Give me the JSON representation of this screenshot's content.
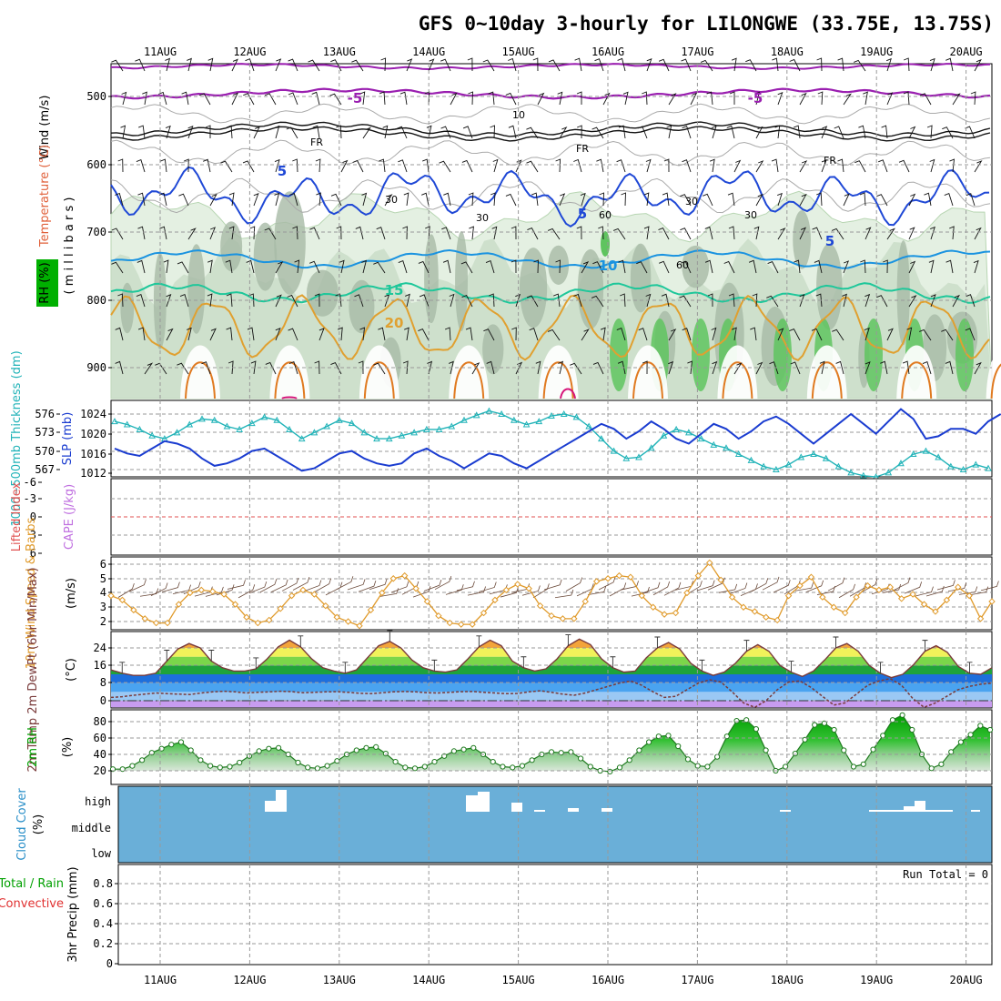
{
  "title": "GFS 0~10day 3-hourly for LILONGWE (33.75E, 13.75S)",
  "dates": [
    "11AUG",
    "12AUG",
    "13AUG",
    "14AUG",
    "15AUG",
    "16AUG",
    "17AUG",
    "18AUG",
    "19AUG",
    "20AUG"
  ],
  "panels": {
    "upper": {
      "ylabel_wind": "Wind (m/s)",
      "ylabel_temp": "Temperature (°C)",
      "ylabel_rh": "RH (%)",
      "ylabel_mb": "( m i l l i b a r s )",
      "pressure_ticks": [
        "500",
        "600",
        "700",
        "800",
        "900"
      ],
      "contour_labels": [
        "-5",
        "-5",
        "FR",
        "FR",
        "FR",
        "5",
        "5",
        "5",
        "10",
        "15",
        "20",
        "10",
        "30",
        "30",
        "30",
        "30",
        "60",
        "60"
      ]
    },
    "thickness": {
      "ylabel_left": "1000~500mb Thickness (dm)",
      "ylabel_right": "SLP (mb)",
      "left_ticks": [
        "576",
        "573",
        "570",
        "567"
      ],
      "right_ticks": [
        "1024",
        "1020",
        "1016",
        "1012"
      ]
    },
    "lifted": {
      "ylabel_left": "Lifted Index",
      "ylabel_right": "CAPE (J/kg)",
      "ticks": [
        "-6",
        "-3",
        "0",
        "3",
        "6"
      ]
    },
    "wind10": {
      "ylabel": "10m Wind Speed & Barbs",
      "unit": "(m/s)",
      "ticks": [
        "6",
        "5",
        "4",
        "3",
        "2"
      ]
    },
    "temp2m": {
      "ylabel": "2m Temp 2m DewPt (6hr Min/Max)",
      "unit": "(°C)",
      "ticks": [
        "24",
        "16",
        "8",
        "0"
      ]
    },
    "rh2m": {
      "ylabel": "2m RH",
      "unit": "(%)",
      "ticks": [
        "80",
        "60",
        "40",
        "20"
      ]
    },
    "cloud": {
      "ylabel": "Cloud Cover",
      "unit": "(%)",
      "levels": [
        "high",
        "middle",
        "low"
      ]
    },
    "precip": {
      "ylabel_total": "Total / Rain",
      "ylabel_conv": "Convective",
      "ylabel": "3hr Precip (mm)",
      "run_total": "Run Total = 0",
      "ticks": [
        "0.8",
        "0.6",
        "0.4",
        "0.2",
        "0"
      ]
    }
  },
  "chart_data": [
    {
      "type": "line",
      "panel": "thickness-slp",
      "x_unit": "day index from 11AUG (3-hourly)",
      "series": [
        {
          "name": "1000~500mb Thickness (dm)",
          "axis": "left",
          "color": "#21b3b8",
          "values": [
            574.8,
            574.3,
            573.5,
            572.5,
            572,
            573,
            574.3,
            575.2,
            575,
            574,
            573.5,
            574.5,
            575.5,
            575,
            573.5,
            572,
            573,
            574,
            575,
            574.5,
            573,
            572,
            572,
            572.5,
            573,
            573.5,
            573.5,
            574,
            575,
            575.8,
            576.5,
            576,
            575,
            574.3,
            574.8,
            575.7,
            576,
            575.5,
            574,
            572,
            570,
            568.8,
            569,
            570.5,
            572.5,
            573.5,
            573,
            572,
            571,
            570.5,
            569.5,
            568.5,
            567.5,
            567,
            567.8,
            569,
            569.5,
            568.8,
            567.5,
            566.5,
            566,
            565.8,
            566.5,
            568,
            569.5,
            570,
            569,
            567.5,
            567,
            567.8,
            567.2
          ]
        },
        {
          "name": "SLP (mb)",
          "axis": "right",
          "color": "#1a3cd0",
          "values": [
            1017,
            1016,
            1015.5,
            1017,
            1018.5,
            1018,
            1017,
            1015,
            1013.5,
            1014,
            1015,
            1016.5,
            1017,
            1015.5,
            1014,
            1012.5,
            1013,
            1014.5,
            1016,
            1016.5,
            1015,
            1014,
            1013.5,
            1014,
            1016,
            1017,
            1015.5,
            1014.5,
            1013,
            1014.5,
            1016,
            1015.5,
            1014,
            1013,
            1014.5,
            1016,
            1017.5,
            1019,
            1020.5,
            1022,
            1021,
            1019,
            1020.5,
            1022.5,
            1021,
            1019,
            1018,
            1020,
            1022,
            1021,
            1019,
            1020.5,
            1022.5,
            1023.5,
            1022,
            1020,
            1018,
            1020,
            1022,
            1024,
            1022,
            1020,
            1022.5,
            1025,
            1023,
            1019,
            1019.5,
            1021,
            1021,
            1020,
            1022.5,
            1024
          ]
        }
      ]
    },
    {
      "type": "line",
      "panel": "lifted-index",
      "series": [
        {
          "name": "Lifted Index",
          "color": "#e05050",
          "values": [
            0
          ]
        }
      ],
      "ylim": [
        6,
        -6
      ]
    },
    {
      "type": "line",
      "panel": "10m-wind-speed",
      "series": [
        {
          "name": "10m Wind Speed",
          "color": "#e09a2a",
          "values": [
            3.8,
            3.5,
            2.8,
            2.2,
            1.9,
            1.9,
            3.2,
            4.0,
            4.2,
            4.1,
            3.9,
            3.2,
            2.3,
            1.9,
            2.1,
            2.9,
            3.8,
            4.2,
            3.9,
            3.1,
            2.3,
            2.0,
            1.7,
            2.8,
            4.0,
            5.0,
            5.2,
            4.3,
            3.4,
            2.4,
            1.9,
            1.8,
            1.8,
            2.6,
            3.5,
            4.2,
            4.6,
            4.3,
            3.1,
            2.4,
            2.2,
            2.2,
            3.4,
            4.8,
            5.0,
            5.2,
            5.1,
            3.8,
            3.0,
            2.5,
            2.6,
            4.0,
            5.2,
            6.1,
            4.9,
            3.7,
            3.0,
            2.7,
            2.3,
            2.1,
            3.8,
            4.5,
            5.1,
            3.7,
            3.0,
            2.6,
            3.7,
            4.5,
            4.2,
            4.4,
            3.6,
            3.9,
            3.2,
            2.7,
            3.5,
            4.4,
            3.8,
            2.2,
            3.4
          ]
        }
      ],
      "ylim": [
        1.2,
        6.5
      ]
    },
    {
      "type": "line",
      "panel": "2m-temp",
      "series": [
        {
          "name": "2m Temp",
          "color": "#7a3b3b",
          "values": [
            14,
            12.5,
            11.5,
            11.5,
            12.5,
            18,
            23.5,
            26,
            24,
            18,
            15,
            13.5,
            13.5,
            14.5,
            19,
            24.5,
            27.5,
            24.5,
            19,
            15,
            13.5,
            12.5,
            14,
            19.5,
            25,
            27,
            24,
            18.5,
            15,
            13.5,
            13,
            14,
            19,
            24.5,
            27.5,
            25,
            18,
            15,
            13.5,
            14.5,
            19,
            25,
            28,
            25.5,
            19,
            15,
            13,
            13.5,
            19.5,
            24,
            26.5,
            23.5,
            17,
            13.5,
            11.5,
            13,
            17,
            22.5,
            25.5,
            22.5,
            16,
            13,
            11,
            13.5,
            18.5,
            24,
            26,
            22.5,
            16,
            12.5,
            10.5,
            12,
            16.5,
            22.5,
            25,
            22,
            15.5,
            12.5,
            12,
            15
          ]
        },
        {
          "name": "2m DewPt",
          "color": "#7a3b3b",
          "values": [
            1.5,
            1.8,
            2.5,
            3,
            3.5,
            3.2,
            3,
            2.8,
            3.5,
            4,
            4.3,
            4,
            3.5,
            3.8,
            4,
            4.3,
            4.1,
            3.6,
            3.8,
            4,
            4.1,
            3.8,
            3.4,
            3.2,
            3.6,
            4,
            4.2,
            4,
            3.6,
            3.5,
            3.8,
            4.1,
            4.2,
            3.8,
            3.5,
            3.2,
            3.3,
            4,
            4.5,
            3.8,
            3,
            2.5,
            3.5,
            5,
            6.5,
            8,
            9,
            7,
            4,
            1.5,
            2,
            5,
            8,
            9.5,
            8.5,
            4,
            -1,
            -3,
            0,
            5,
            8.5,
            9,
            6,
            2,
            -2,
            -1,
            3,
            7,
            9,
            10,
            7,
            1,
            -3,
            -1,
            2,
            5,
            6.5,
            7.5,
            8
          ]
        }
      ],
      "ylim": [
        -3,
        29
      ]
    },
    {
      "type": "area",
      "panel": "2m-rh",
      "series": [
        {
          "name": "2m RH",
          "color": "#00a000",
          "values": [
            22,
            22,
            26,
            33,
            42,
            47,
            52,
            55,
            45,
            33,
            26,
            24,
            25,
            30,
            38,
            44,
            47,
            48,
            40,
            30,
            24,
            23,
            26,
            32,
            40,
            45,
            48,
            49,
            41,
            31,
            24,
            23,
            25,
            31,
            38,
            44,
            46,
            48,
            40,
            31,
            25,
            24,
            26,
            33,
            40,
            43,
            42,
            43,
            35,
            25,
            20,
            19,
            24,
            33,
            45,
            55,
            62,
            63,
            50,
            34,
            26,
            25,
            37,
            62,
            81,
            82,
            71,
            45,
            20,
            25,
            41,
            58,
            76,
            78,
            70,
            45,
            25,
            28,
            46,
            63,
            82,
            88,
            70,
            40,
            23,
            28,
            43,
            55,
            64,
            75,
            70
          ]
        }
      ],
      "ylim": [
        15,
        95
      ]
    },
    {
      "type": "bar",
      "panel": "cloud-cover",
      "series": [
        {
          "name": "Cloud Cover",
          "color": "#6aafd8",
          "values": [
            100
          ]
        }
      ]
    },
    {
      "type": "bar",
      "panel": "3hr-precip",
      "series": [
        {
          "name": "3hr Precip (mm)",
          "values": [
            0
          ]
        }
      ],
      "ylim": [
        0,
        0.9
      ]
    }
  ]
}
